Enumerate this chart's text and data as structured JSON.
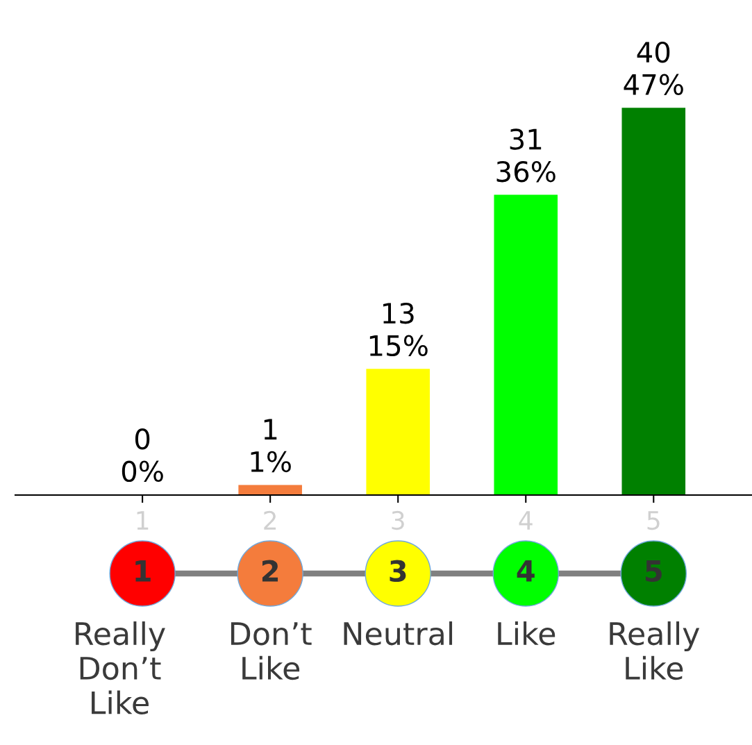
{
  "chart_data": {
    "type": "bar",
    "categories": [
      "1",
      "2",
      "3",
      "4",
      "5"
    ],
    "values": [
      0,
      1,
      13,
      31,
      40
    ],
    "colors": [
      "#ff0000",
      "#f47c3c",
      "#ffff00",
      "#00ff00",
      "#008000"
    ],
    "value_labels": [
      "0\n0%",
      "1\n1%",
      "13\n15%",
      "31\n36%",
      "40\n47%"
    ],
    "annotations": [
      "Really\nDon’t\nLike",
      "Don’t\nLike",
      "Neutral",
      "Like",
      "Really\nLike"
    ],
    "grid": false,
    "legend": false
  }
}
